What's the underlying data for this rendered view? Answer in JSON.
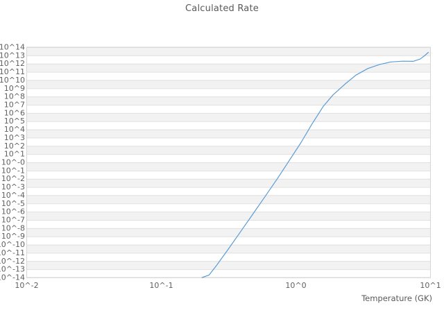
{
  "chart_data": {
    "type": "line",
    "title": "Calculated Rate",
    "xlabel": "Temperature (GK)",
    "ylabel": "",
    "x_scale": "log",
    "y_scale": "log",
    "x_log_range": [
      -2,
      1
    ],
    "y_log_range": [
      -14,
      14
    ],
    "x_tick_labels": [
      "10^-2",
      "10^-1",
      "10^0",
      "10^1"
    ],
    "x_tick_logs": [
      -2,
      -1,
      0,
      1
    ],
    "y_tick_labels": [
      "10^14",
      "10^13",
      "10^12",
      "10^11",
      "10^10",
      "10^9",
      "10^8",
      "10^7",
      "10^6",
      "10^5",
      "10^4",
      "10^3",
      "10^2",
      "10^1",
      "10^-0",
      "10^-1",
      "10^-2",
      "10^-3",
      "10^-4",
      "10^-5",
      "10^-6",
      "10^-7",
      "10^-8",
      "10^-9",
      "10^-10",
      "10^-11",
      "10^-12",
      "10^-13",
      "10^-14"
    ],
    "y_tick_logs": [
      14,
      13,
      12,
      11,
      10,
      9,
      8,
      7,
      6,
      5,
      4,
      3,
      2,
      1,
      0,
      -1,
      -2,
      -3,
      -4,
      -5,
      -6,
      -7,
      -8,
      -9,
      -10,
      -11,
      -12,
      -13,
      -14
    ],
    "grid": "horizontal-only",
    "band_shading": "alternating-decades",
    "legend": "none",
    "series": [
      {
        "name": "calculated-rate",
        "color": "#5b9bd5",
        "log10_temperature_GK": [
          -0.697,
          -0.645,
          -0.588,
          -0.5,
          -0.412,
          -0.324,
          -0.231,
          -0.138,
          -0.05,
          0.038,
          0.121,
          0.203,
          0.276,
          0.364,
          0.446,
          0.534,
          0.622,
          0.705,
          0.793,
          0.871,
          0.922,
          0.958,
          0.984
        ],
        "log10_rate": [
          -14.0,
          -13.7,
          -12.5,
          -10.5,
          -8.45,
          -6.4,
          -4.2,
          -2.0,
          0.2,
          2.4,
          4.7,
          6.8,
          8.2,
          9.5,
          10.6,
          11.4,
          11.9,
          12.2,
          12.3,
          12.28,
          12.55,
          12.99,
          13.37
        ]
      }
    ],
    "colors": {
      "band": "#f2f2f2",
      "grid": "#e0e0e0",
      "spine": "#d6d6d6",
      "title_text": "#595959",
      "tick_text": "#5f5f5f",
      "line": "#5b9bd5",
      "background": "#ffffff"
    }
  }
}
